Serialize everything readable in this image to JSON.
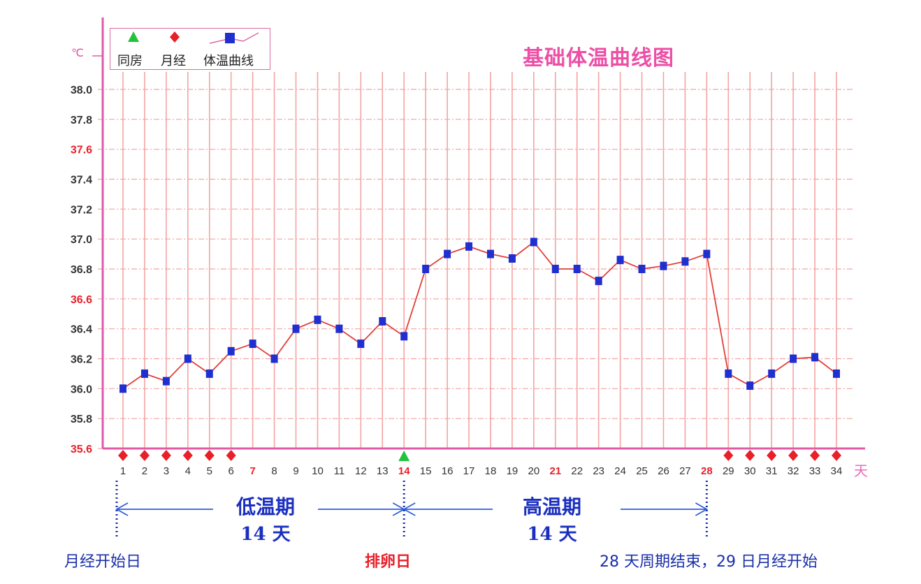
{
  "title": "基础体温曲线图",
  "y_unit": "℃",
  "x_unit": "天",
  "legend": {
    "items": [
      {
        "label": "同房",
        "icon": "green-triangle-icon",
        "color": "#22c33a"
      },
      {
        "label": "月经",
        "icon": "red-diamond-icon",
        "color": "#e8202a"
      },
      {
        "label": "体温曲线",
        "icon": "blue-square-line-icon",
        "color": "#1f2fd0"
      }
    ]
  },
  "phases": {
    "low": {
      "name": "低温期",
      "days": "14 天"
    },
    "high": {
      "name": "高温期",
      "days": "14 天"
    }
  },
  "annotations": {
    "period_start": "月经开始日",
    "ovulation": "排卵日",
    "cycle_end": "28 天周期结束，29 日月经开始"
  },
  "colors": {
    "axis": "#e05aa8",
    "grid": "#f4a3a3",
    "line": "#e0403a",
    "marker": "#1f2fd0",
    "highlight": "#e8202a",
    "title": "#ec4fa6",
    "phase_text": "#1a2fbf"
  },
  "chart_data": {
    "type": "line",
    "title": "基础体温曲线图",
    "xlabel": "天",
    "ylabel": "℃",
    "ylim": [
      35.6,
      38.0
    ],
    "yticks": [
      "35.6",
      "35.8",
      "36.0",
      "36.2",
      "36.4",
      "36.6",
      "36.8",
      "37.0",
      "37.2",
      "37.4",
      "37.6",
      "37.8",
      "38.0"
    ],
    "highlighted_yticks": [
      "35.6",
      "36.6",
      "37.6"
    ],
    "x": [
      1,
      2,
      3,
      4,
      5,
      6,
      7,
      8,
      9,
      10,
      11,
      12,
      13,
      14,
      15,
      16,
      17,
      18,
      19,
      20,
      21,
      22,
      23,
      24,
      25,
      26,
      27,
      28,
      29,
      30,
      31,
      32,
      33,
      34
    ],
    "highlighted_xticks": [
      7,
      14,
      21,
      28
    ],
    "grid": true,
    "legend_position": "top-left",
    "series": [
      {
        "name": "体温曲线",
        "values": [
          36.0,
          36.1,
          36.05,
          36.2,
          36.1,
          36.25,
          36.3,
          36.2,
          36.4,
          36.46,
          36.4,
          36.3,
          36.45,
          36.35,
          36.8,
          36.9,
          36.95,
          36.9,
          36.87,
          36.98,
          36.8,
          36.8,
          36.72,
          36.86,
          36.8,
          36.82,
          36.85,
          36.9,
          36.1,
          36.02,
          36.1,
          36.2,
          36.21,
          36.1
        ]
      }
    ],
    "markers": {
      "月经": [
        1,
        2,
        3,
        4,
        5,
        6,
        29,
        30,
        31,
        32,
        33,
        34
      ],
      "同房": [
        14
      ]
    }
  }
}
